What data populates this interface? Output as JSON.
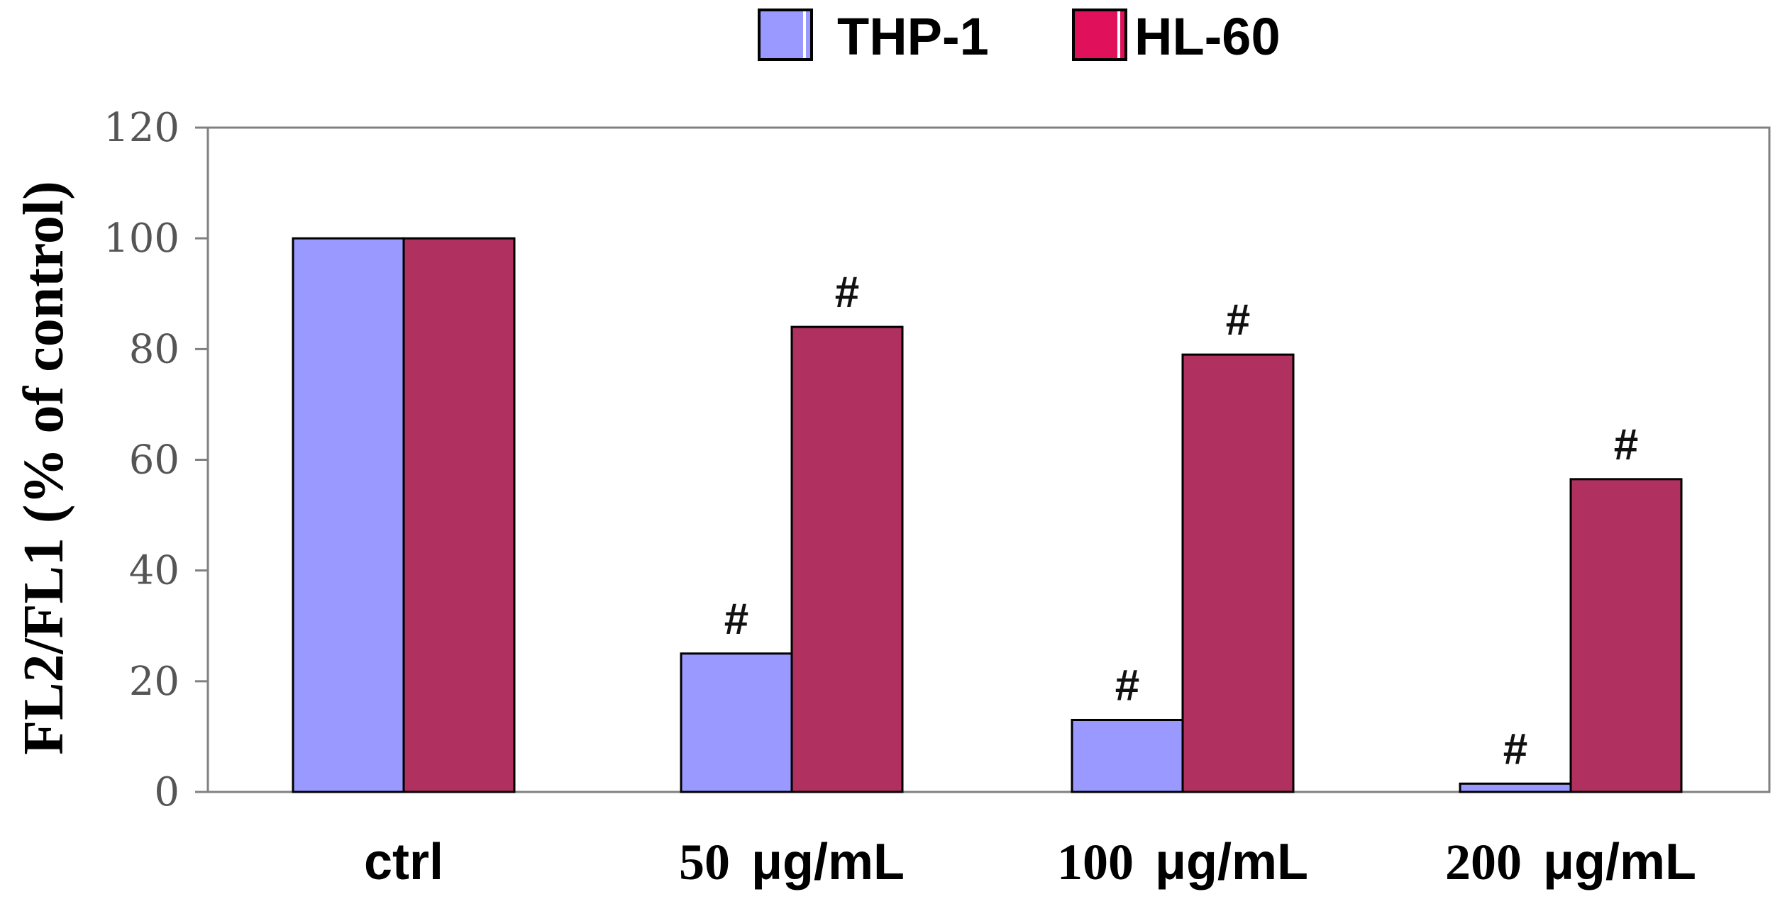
{
  "chart_data": {
    "type": "bar",
    "title": "",
    "xlabel": "",
    "ylabel": "FL2/FL1 (% of control)",
    "ylim": [
      0,
      120
    ],
    "yticks": [
      0,
      20,
      40,
      60,
      80,
      100,
      120
    ],
    "grid": false,
    "legend_position": "top-center",
    "categories": [
      {
        "num": "ctrl",
        "unit": ""
      },
      {
        "num": "50",
        "unit": "μg/mL"
      },
      {
        "num": "100",
        "unit": "μg/mL"
      },
      {
        "num": "200",
        "unit": "μg/mL"
      }
    ],
    "series": [
      {
        "name": "THP-1",
        "color": "#9999ff",
        "values": [
          100,
          25,
          13,
          1.5
        ],
        "annotations": [
          "",
          "#",
          "#",
          "#"
        ]
      },
      {
        "name": "HL-60",
        "color": "#b03060",
        "values": [
          100,
          84,
          79,
          56.5
        ],
        "annotations": [
          "",
          "#",
          "#",
          "#"
        ]
      }
    ],
    "legend_swatch_colors": [
      "#9999ff",
      "#e0105a"
    ]
  }
}
